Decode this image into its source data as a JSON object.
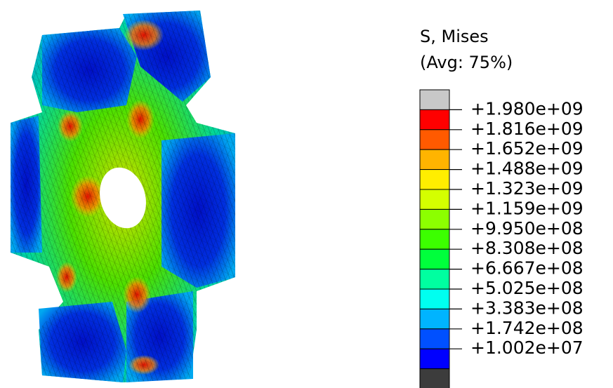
{
  "legend": {
    "title": "S, Mises",
    "subtitle": "(Avg: 75%)",
    "labels": [
      "+1.980e+09",
      "+1.816e+09",
      "+1.652e+09",
      "+1.488e+09",
      "+1.323e+09",
      "+1.159e+09",
      "+9.950e+08",
      "+8.308e+08",
      "+6.667e+08",
      "+5.025e+08",
      "+3.383e+08",
      "+1.742e+08",
      "+1.002e+07"
    ],
    "colors": [
      "#c8c8c8",
      "#ff0000",
      "#ff5a00",
      "#ffb400",
      "#ffee00",
      "#d4ff00",
      "#8cff00",
      "#3cff00",
      "#00ff3c",
      "#00ffa0",
      "#00fff0",
      "#00b4ff",
      "#0050ff",
      "#0000ff",
      "#3c3c3c"
    ]
  }
}
